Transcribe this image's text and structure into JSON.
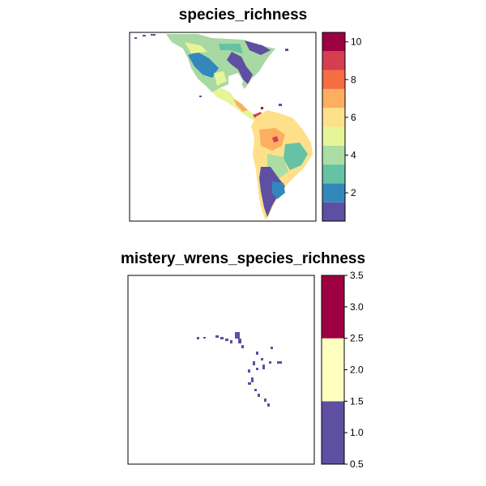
{
  "chart_data": [
    {
      "type": "heatmap",
      "title": "species_richness",
      "legend_ticks": [
        "2",
        "4",
        "6",
        "8",
        "10"
      ],
      "legend_tick_values": [
        2,
        4,
        6,
        8,
        10
      ],
      "legend_range": [
        0.5,
        10.5
      ],
      "legend_colors": [
        "#5E4FA2",
        "#3288BD",
        "#66C2A5",
        "#ABDDA4",
        "#E6F598",
        "#FEE08B",
        "#FDAE61",
        "#F46D43",
        "#D53E4F",
        "#9E0142"
      ],
      "legend_placement": "right",
      "map_region": "Americas"
    },
    {
      "type": "heatmap",
      "title": "mistery_wrens_species_richness",
      "legend_ticks": [
        "0.5",
        "1.0",
        "1.5",
        "2.0",
        "2.5",
        "3.0",
        "3.5"
      ],
      "legend_tick_values": [
        0.5,
        1.0,
        1.5,
        2.0,
        2.5,
        3.0,
        3.5
      ],
      "legend_range": [
        0.5,
        3.5
      ],
      "legend_colors": [
        "#5E4FA2",
        "#FFFFBF",
        "#9E0142"
      ],
      "legend_placement": "right",
      "map_region": "Central America and northern Andes"
    }
  ]
}
